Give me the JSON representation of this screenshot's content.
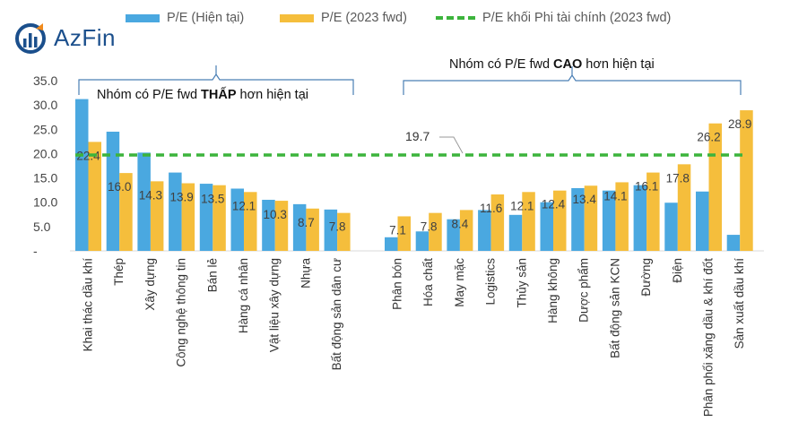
{
  "brand": {
    "logo_text": "AzFin",
    "logo_color": "#1b4f8c",
    "accent_color": "#f08a1c"
  },
  "legend": [
    {
      "label": "P/E (Hiện tại)",
      "color": "#4aa8e0",
      "kind": "bar"
    },
    {
      "label": "P/E (2023 fwd)",
      "color": "#f5be3c",
      "kind": "bar"
    },
    {
      "label": "P/E khối Phi tài chính (2023 fwd)",
      "color": "#3cb43c",
      "kind": "dashed-line"
    }
  ],
  "annotations": {
    "low_group": {
      "prefix": "Nhóm có P/E fwd ",
      "emphasis": "THẤP",
      "suffix": " hơn hiện tại"
    },
    "high_group": {
      "prefix": "Nhóm có P/E fwd ",
      "emphasis": "CAO",
      "suffix": " hơn hiện tại"
    },
    "reference_label": "19.7"
  },
  "chart_data": {
    "type": "bar",
    "ylim": [
      0,
      35
    ],
    "yticks": [
      "-",
      "5.0",
      "10.0",
      "15.0",
      "20.0",
      "25.0",
      "30.0",
      "35.0"
    ],
    "grid": false,
    "legend_position": "top",
    "reference_line": {
      "name": "P/E khối Phi tài chính (2023 fwd)",
      "value": 19.7
    },
    "groups": [
      {
        "name": "Nhóm có P/E fwd THẤP hơn hiện tại",
        "categories": [
          "Khai thác dầu khí",
          "Thép",
          "Xây dựng",
          "Công nghệ thông tin",
          "Bán lẻ",
          "Hàng cá nhân",
          "Vật liệu xây dựng",
          "Nhựa",
          "Bất động sản dân cư"
        ],
        "current": [
          31.2,
          24.5,
          20.2,
          16.1,
          13.8,
          12.8,
          10.5,
          9.6,
          8.5
        ],
        "fwd": [
          22.4,
          16.0,
          14.3,
          13.9,
          13.5,
          12.1,
          10.3,
          8.7,
          7.8
        ],
        "fwd_labels": [
          "22.4",
          "16.0",
          "14.3",
          "13.9",
          "13.5",
          "12.1",
          "10.3",
          "8.7",
          "7.8"
        ]
      },
      {
        "name": "Nhóm có P/E fwd CAO hơn hiện tại",
        "categories": [
          "Phân bón",
          "Hóa chất",
          "May mặc",
          "Logistics",
          "Thủy sản",
          "Hàng không",
          "Dược phẩm",
          "Bất động sản KCN",
          "Đường",
          "Điện",
          "Phân phối xăng dầu & khí đốt",
          "Sản xuất dầu khí"
        ],
        "current": [
          2.8,
          4.0,
          6.5,
          8.4,
          7.4,
          10.0,
          12.9,
          12.4,
          13.5,
          9.9,
          12.2,
          3.3
        ],
        "fwd": [
          7.1,
          7.8,
          8.4,
          11.6,
          12.1,
          12.4,
          13.4,
          14.1,
          16.1,
          17.8,
          26.2,
          28.9
        ],
        "fwd_labels": [
          "7.1",
          "7.8",
          "8.4",
          "11.6",
          "12.1",
          "12.4",
          "13.4",
          "14.1",
          "16.1",
          "17.8",
          "26.2",
          "28.9"
        ]
      }
    ]
  }
}
